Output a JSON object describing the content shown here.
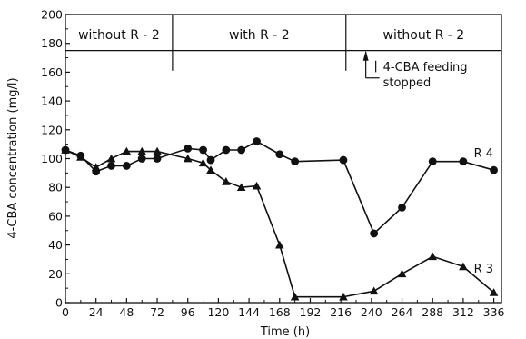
{
  "chart_data": {
    "type": "line",
    "xlabel": "Time (h)",
    "ylabel": "4-CBA concentration (mg/l)",
    "xlim": [
      0,
      342
    ],
    "ylim": [
      0,
      200
    ],
    "x_ticks": [
      "0",
      "24",
      "48",
      "72",
      "96",
      "120",
      "144",
      "168",
      "192",
      "216",
      "240",
      "264",
      "288",
      "312",
      "336"
    ],
    "y_ticks": [
      "0",
      "20",
      "40",
      "60",
      "80",
      "100",
      "120",
      "140",
      "160",
      "180",
      "200"
    ],
    "phases": [
      {
        "label": "without R - 2",
        "start": 0,
        "end": 84
      },
      {
        "label": "with R - 2",
        "start": 84,
        "end": 220
      },
      {
        "label": "without R - 2",
        "start": 220,
        "end": 342
      }
    ],
    "annotation": {
      "lines": [
        "4-CBA feeding",
        "stopped"
      ],
      "x": 242
    },
    "series": [
      {
        "name": "R 4",
        "marker": "circle",
        "x": [
          0,
          12,
          24,
          36,
          48,
          60,
          72,
          96,
          108,
          114,
          126,
          138,
          150,
          168,
          180,
          218,
          242,
          264,
          288,
          312,
          336
        ],
        "values": [
          106,
          102,
          91,
          95,
          95,
          100,
          100,
          107,
          106,
          99,
          106,
          106,
          112,
          103,
          98,
          99,
          48,
          66,
          98,
          98,
          92
        ]
      },
      {
        "name": "R 3",
        "marker": "triangle",
        "x": [
          0,
          12,
          24,
          36,
          48,
          60,
          72,
          96,
          108,
          114,
          126,
          138,
          150,
          168,
          180,
          218,
          242,
          264,
          288,
          312,
          336
        ],
        "values": [
          106,
          101,
          94,
          100,
          105,
          105,
          105,
          100,
          97,
          92,
          84,
          80,
          81,
          40,
          4,
          4,
          8,
          20,
          32,
          25,
          7
        ]
      }
    ]
  }
}
